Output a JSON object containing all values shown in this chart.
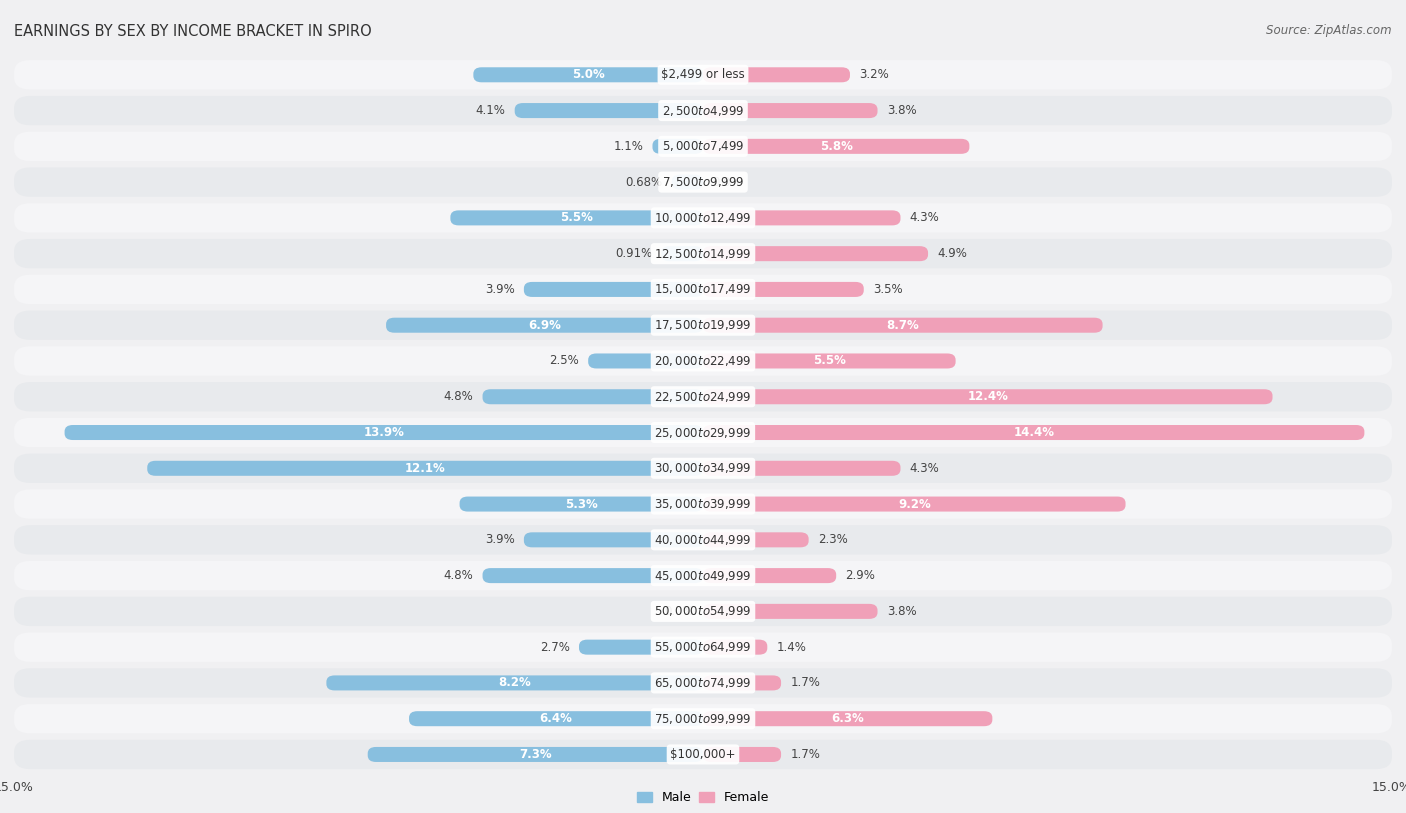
{
  "title": "EARNINGS BY SEX BY INCOME BRACKET IN SPIRO",
  "source": "Source: ZipAtlas.com",
  "categories": [
    "$2,499 or less",
    "$2,500 to $4,999",
    "$5,000 to $7,499",
    "$7,500 to $9,999",
    "$10,000 to $12,499",
    "$12,500 to $14,999",
    "$15,000 to $17,499",
    "$17,500 to $19,999",
    "$20,000 to $22,499",
    "$22,500 to $24,999",
    "$25,000 to $29,999",
    "$30,000 to $34,999",
    "$35,000 to $39,999",
    "$40,000 to $44,999",
    "$45,000 to $49,999",
    "$50,000 to $54,999",
    "$55,000 to $64,999",
    "$65,000 to $74,999",
    "$75,000 to $99,999",
    "$100,000+"
  ],
  "male": [
    5.0,
    4.1,
    1.1,
    0.68,
    5.5,
    0.91,
    3.9,
    6.9,
    2.5,
    4.8,
    13.9,
    12.1,
    5.3,
    3.9,
    4.8,
    0.0,
    2.7,
    8.2,
    6.4,
    7.3
  ],
  "female": [
    3.2,
    3.8,
    5.8,
    0.0,
    4.3,
    4.9,
    3.5,
    8.7,
    5.5,
    12.4,
    14.4,
    4.3,
    9.2,
    2.3,
    2.9,
    3.8,
    1.4,
    1.7,
    6.3,
    1.7
  ],
  "male_color": "#88bfdf",
  "female_color": "#f0a0b8",
  "row_color_odd": "#e8eaed",
  "row_color_even": "#f5f5f7",
  "background_color": "#f0f0f2",
  "xlim": 15.0,
  "title_fontsize": 10.5,
  "source_fontsize": 8.5,
  "label_fontsize": 8.5,
  "tick_fontsize": 9,
  "category_fontsize": 8.5
}
